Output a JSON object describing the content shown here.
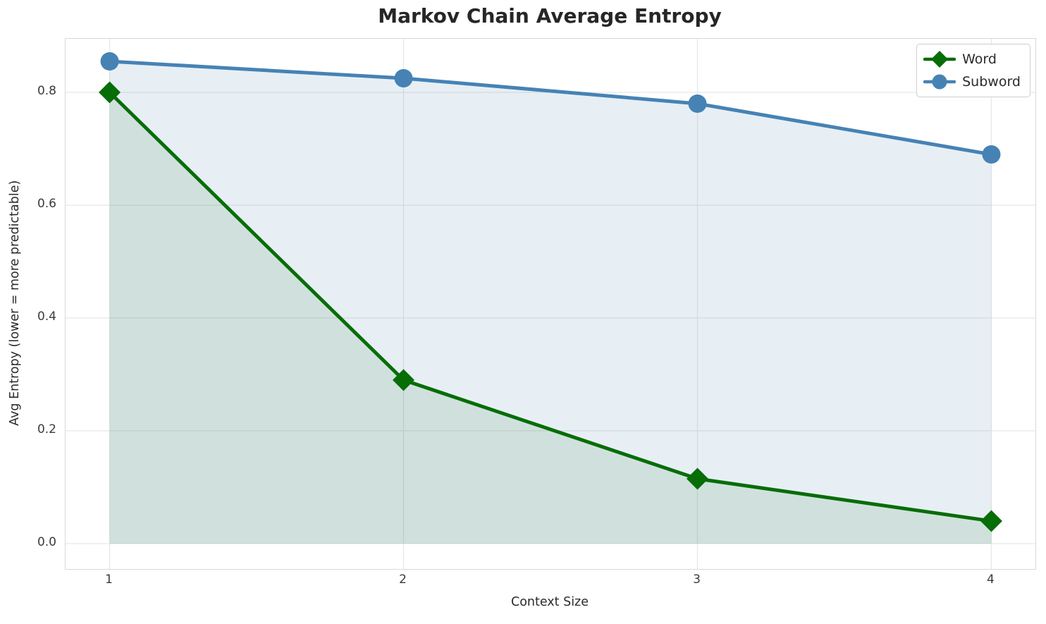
{
  "chart_data": {
    "type": "line",
    "title": "Markov Chain Average Entropy",
    "xlabel": "Context Size",
    "ylabel": "Avg Entropy (lower = more predictable)",
    "x": [
      1,
      2,
      3,
      4
    ],
    "series": [
      {
        "name": "Word",
        "values": [
          0.8,
          0.29,
          0.115,
          0.04
        ],
        "color": "#076d07",
        "marker": "diamond",
        "fill_to_zero": true,
        "fill_opacity": 0.1
      },
      {
        "name": "Subword",
        "values": [
          0.855,
          0.825,
          0.78,
          0.69
        ],
        "color": "#4682b4",
        "marker": "circle",
        "fill_to_zero": true,
        "fill_opacity": 0.13
      }
    ],
    "xticks": [
      1,
      2,
      3,
      4
    ],
    "xtick_labels": [
      "1",
      "2",
      "3",
      "4"
    ],
    "yticks": [
      0.0,
      0.2,
      0.4,
      0.6,
      0.8
    ],
    "ytick_labels": [
      "0.0",
      "0.2",
      "0.4",
      "0.6",
      "0.8"
    ],
    "xlim": [
      0.85,
      4.15
    ],
    "ylim": [
      -0.045,
      0.895
    ],
    "grid": true,
    "legend_position": "upper right",
    "legend": [
      "Word",
      "Subword"
    ]
  },
  "style": {
    "grid_color": "#e7e7e7",
    "spine_color": "#d9d9d9",
    "title_color": "#262626",
    "tick_color": "#3b3b3b",
    "label_color": "#2b2b2b",
    "background": "#ffffff"
  }
}
